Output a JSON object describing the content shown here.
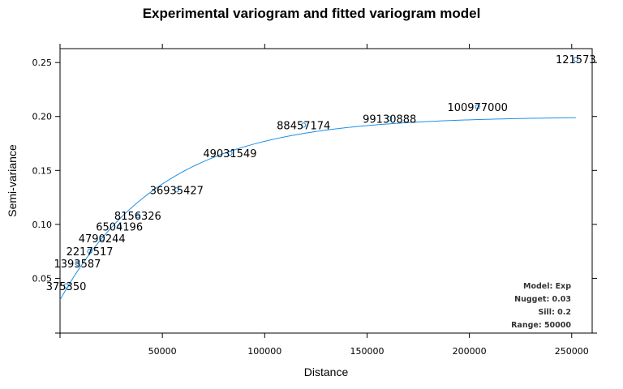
{
  "chart_data": {
    "type": "scatter",
    "title": "Experimental variogram and fitted variogram model",
    "xlabel": "Distance",
    "ylabel": "Semi-variance",
    "xlim": [
      0,
      260000
    ],
    "ylim": [
      0,
      0.25
    ],
    "x_ticks": [
      50000,
      100000,
      150000,
      200000,
      250000
    ],
    "x_tick_labels": [
      "50000",
      "100000",
      "150000",
      "200000",
      "250000"
    ],
    "y_ticks": [
      0.05,
      0.1,
      0.15,
      0.2,
      0.25
    ],
    "y_tick_labels": [
      "0.05",
      "0.10",
      "0.15",
      "0.20",
      "0.25"
    ],
    "point_color": "#1e90e6",
    "line_color": "#1e90e6",
    "points": [
      {
        "x": 3000,
        "y": 0.043,
        "label": "375350"
      },
      {
        "x": 8500,
        "y": 0.064,
        "label": "1393587"
      },
      {
        "x": 14500,
        "y": 0.075,
        "label": "2217517"
      },
      {
        "x": 20500,
        "y": 0.087,
        "label": "4790244"
      },
      {
        "x": 29000,
        "y": 0.098,
        "label": "6504196"
      },
      {
        "x": 38000,
        "y": 0.108,
        "label": "8156326"
      },
      {
        "x": 57000,
        "y": 0.132,
        "label": "36935427"
      },
      {
        "x": 83000,
        "y": 0.166,
        "label": "49031549"
      },
      {
        "x": 119000,
        "y": 0.192,
        "label": "88457174"
      },
      {
        "x": 161000,
        "y": 0.198,
        "label": "99130888"
      },
      {
        "x": 204000,
        "y": 0.209,
        "label": "100977000"
      },
      {
        "x": 252000,
        "y": 0.253,
        "label": "121573"
      }
    ],
    "model": {
      "type": "Exp",
      "nugget": 0.03,
      "sill": 0.2,
      "range": 50000,
      "x_max": 252000
    },
    "model_legend": [
      "Model: Exp",
      "Nugget: 0.03",
      "Sill: 0.2",
      "Range: 50000"
    ]
  }
}
